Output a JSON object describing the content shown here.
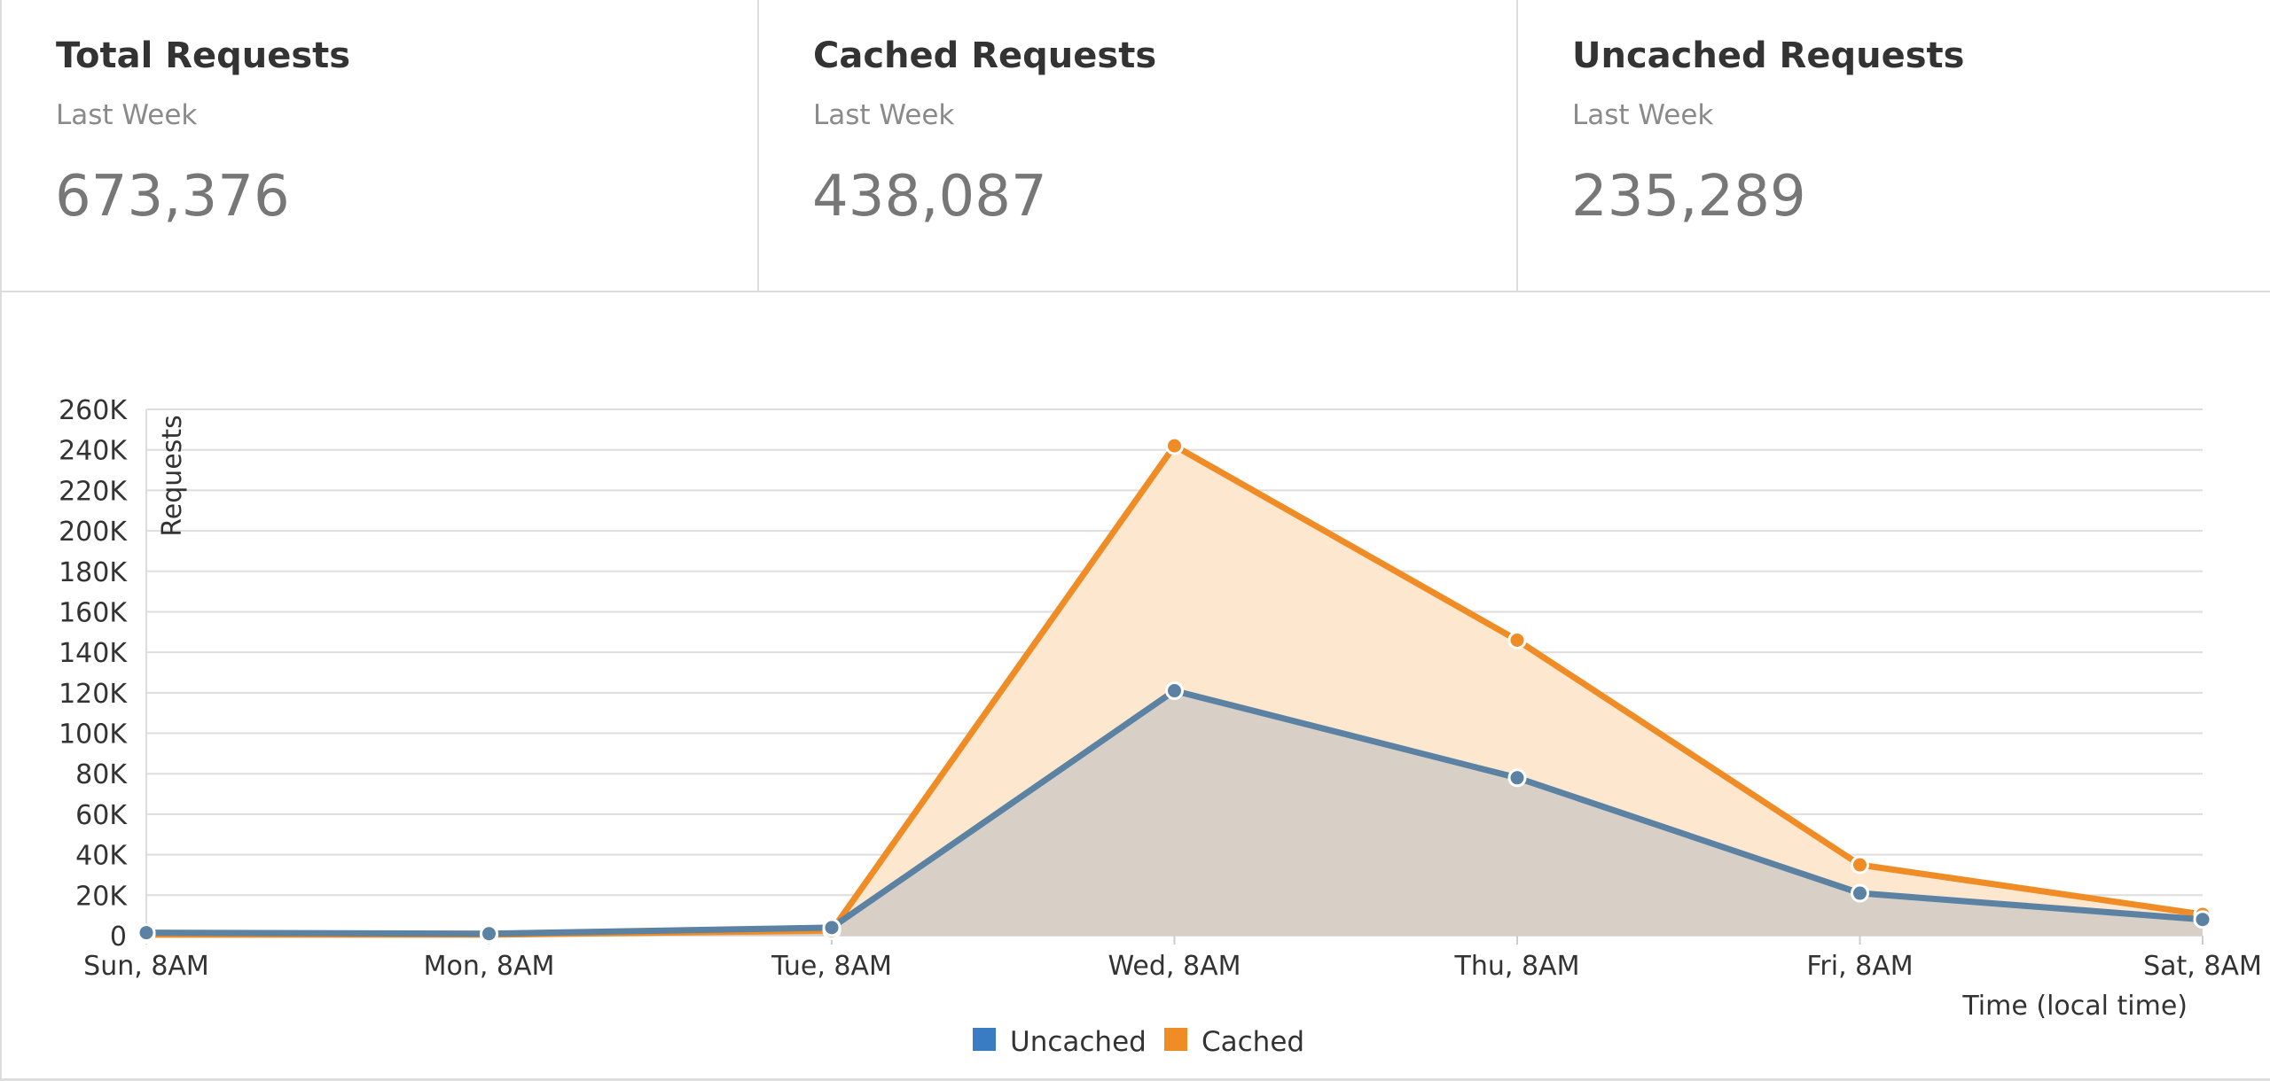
{
  "stats": [
    {
      "title": "Total Requests",
      "period": "Last Week",
      "value": "673,376"
    },
    {
      "title": "Cached Requests",
      "period": "Last Week",
      "value": "438,087"
    },
    {
      "title": "Uncached Requests",
      "period": "Last Week",
      "value": "235,289"
    }
  ],
  "colors": {
    "uncached_line": "#5b82a3",
    "uncached_fill": "#d8d0c6",
    "cached_line": "#f08c25",
    "cached_fill": "#fde7cf",
    "legend_uncached": "#3a7cc4",
    "legend_cached": "#f08c25",
    "grid": "#dddddd"
  },
  "chart_data": {
    "type": "area",
    "categories": [
      "Sun, 8AM",
      "Mon, 8AM",
      "Tue, 8AM",
      "Wed, 8AM",
      "Thu, 8AM",
      "Fri, 8AM",
      "Sat, 8AM"
    ],
    "series": [
      {
        "name": "Uncached",
        "values": [
          1500,
          1000,
          4000,
          121000,
          78000,
          21000,
          8000
        ]
      },
      {
        "name": "Cached",
        "values": [
          500,
          500,
          2500,
          242000,
          146000,
          35000,
          10500
        ]
      }
    ],
    "y_ticks": [
      "0",
      "20K",
      "40K",
      "60K",
      "80K",
      "100K",
      "120K",
      "140K",
      "160K",
      "180K",
      "200K",
      "220K",
      "240K",
      "260K"
    ],
    "ylim": [
      0,
      260000
    ],
    "y_step": 20000,
    "xlabel": "Time (local time)",
    "ylabel": "Requests",
    "grid": true,
    "legend_position": "bottom-center"
  }
}
